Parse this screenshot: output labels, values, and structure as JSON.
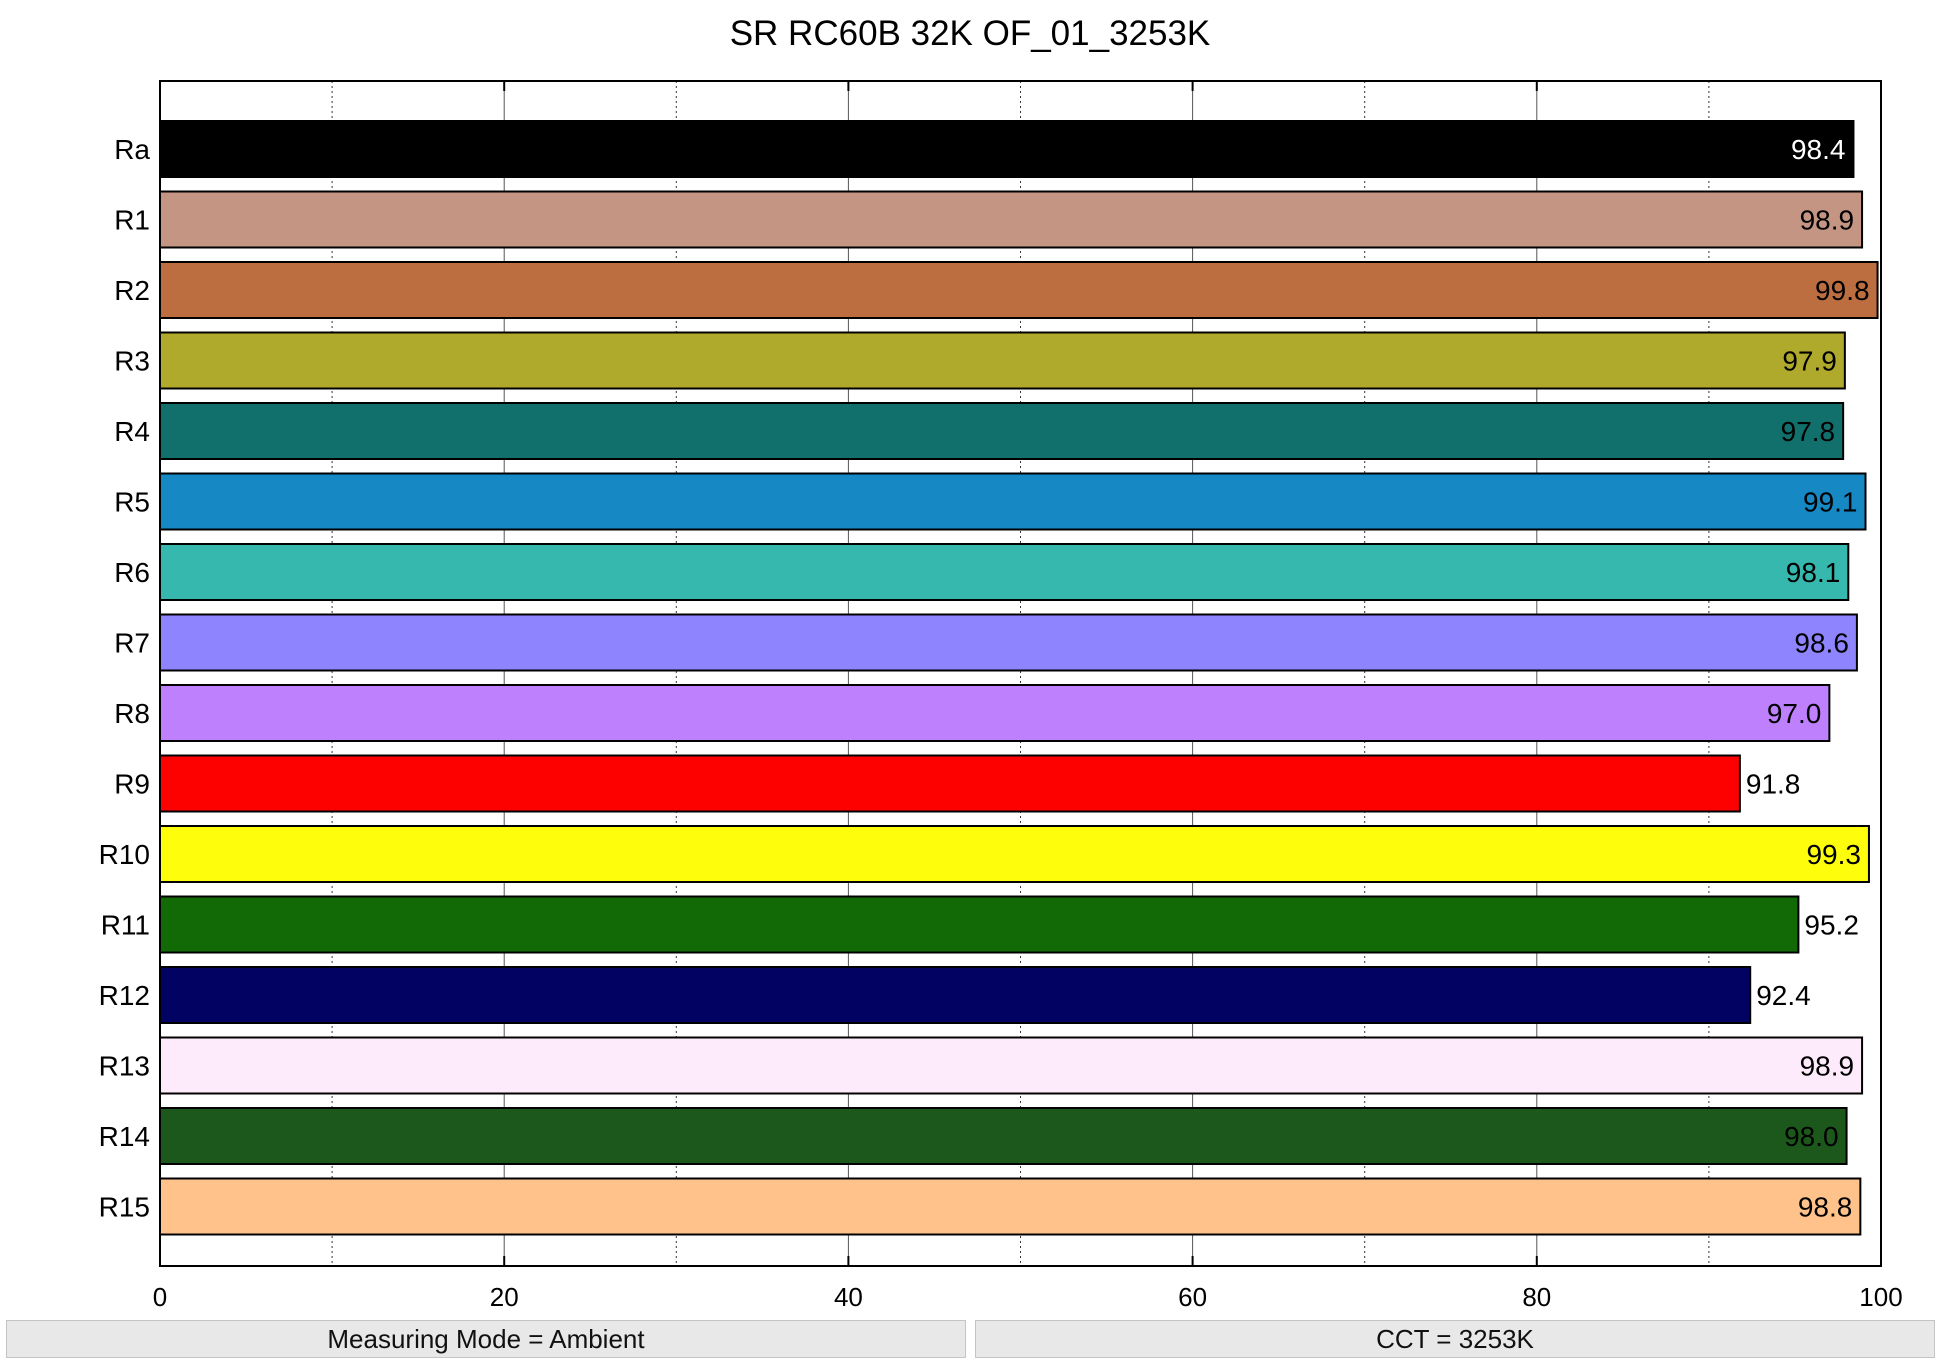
{
  "chart_data": {
    "type": "bar",
    "orientation": "horizontal",
    "title": "SR RC60B 32K OF_01_3253K",
    "xlabel": "",
    "ylabel": "",
    "xlim": [
      0,
      100
    ],
    "x_ticks": [
      0,
      20,
      40,
      60,
      80,
      100
    ],
    "grid": "vertical dotted at 10-unit intervals",
    "categories": [
      "Ra",
      "R1",
      "R2",
      "R3",
      "R4",
      "R5",
      "R6",
      "R7",
      "R8",
      "R9",
      "R10",
      "R11",
      "R12",
      "R13",
      "R14",
      "R15"
    ],
    "values": [
      98.4,
      98.9,
      99.8,
      97.9,
      97.8,
      99.1,
      98.1,
      98.6,
      97.0,
      91.8,
      99.3,
      95.2,
      92.4,
      98.9,
      98.0,
      98.8
    ],
    "value_labels": [
      "98.4",
      "98.9",
      "99.8",
      "97.9",
      "97.8",
      "99.1",
      "98.1",
      "98.6",
      "97.0",
      "91.8",
      "99.3",
      "95.2",
      "92.4",
      "98.9",
      "98.0",
      "98.8"
    ],
    "colors": [
      "#000000",
      "#c49583",
      "#bc6e40",
      "#b0aa2c",
      "#12706c",
      "#1688c4",
      "#36b8ae",
      "#8e84fe",
      "#bf80fe",
      "#fd0000",
      "#fdfd0c",
      "#126a06",
      "#020262",
      "#fdeafa",
      "#1c571c",
      "#fec28a"
    ],
    "label_colors": [
      "#ffffff",
      "#000000",
      "#000000",
      "#000000",
      "#000000",
      "#000000",
      "#000000",
      "#000000",
      "#000000",
      "#000000",
      "#000000",
      "#000000",
      "#000000",
      "#000000",
      "#000000",
      "#000000"
    ]
  },
  "status": {
    "measuring_mode": "Measuring Mode = Ambient",
    "cct": "CCT = 3253K"
  }
}
